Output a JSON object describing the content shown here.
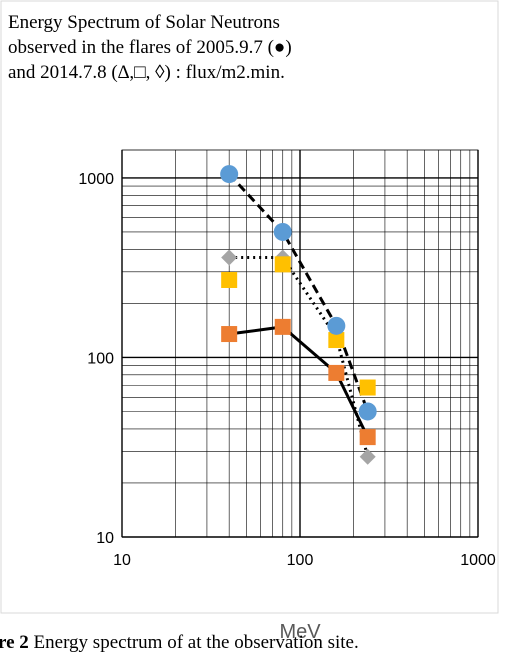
{
  "chart_data": {
    "type": "scatter",
    "title": [
      "Energy Spectrum of Solar Neutrons",
      "observed in the flares of  2005.9.7 (●)",
      "and 2014.7.8 (∆,□, ◊) : flux/m2.min."
    ],
    "x_label": "MeV",
    "caption_label": "re 2",
    "caption_text": "Energy spectrum of at the observation site.",
    "x": [
      40,
      80,
      160,
      240
    ],
    "series": [
      {
        "color": "#a5a5a5",
        "marker": "diamond",
        "line": "dot",
        "values": [
          360,
          360,
          130,
          28
        ]
      },
      {
        "color": "#ed7d31",
        "marker": "square",
        "line": "solid",
        "values": [
          135,
          148,
          82,
          36
        ]
      },
      {
        "color": "#ffc000",
        "marker": "square",
        "line": "none",
        "values": [
          270,
          330,
          125,
          68
        ]
      },
      {
        "color": "#5b9bd5",
        "marker": "circle",
        "line": "dash",
        "values": [
          1050,
          500,
          150,
          50
        ]
      }
    ],
    "xlim": [
      10,
      1000
    ],
    "xticks": [
      10,
      100,
      1000
    ],
    "ylim": [
      10,
      1430
    ],
    "yticks": [
      10,
      100,
      1000
    ],
    "log_x": true,
    "log_y": true,
    "grid": true
  }
}
